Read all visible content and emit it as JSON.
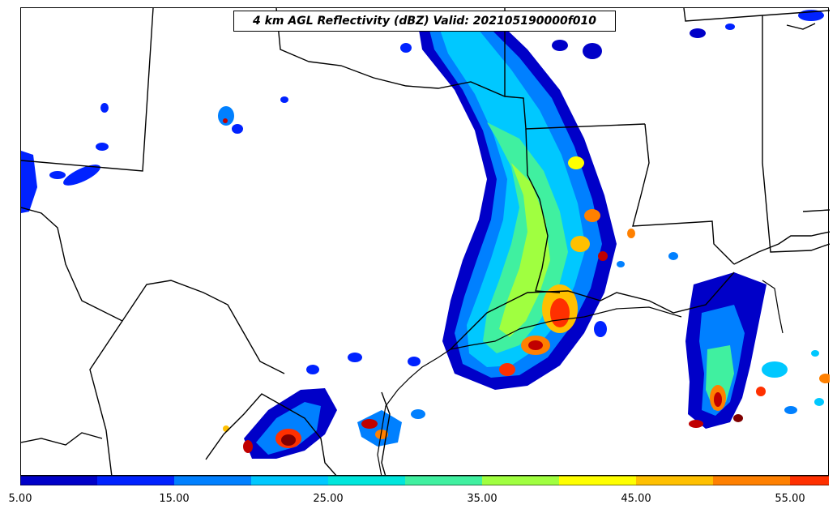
{
  "title": "4 km AGL Reflectivity (dBZ) Valid: 202105190000f010",
  "colorbar": {
    "tick_labels": [
      "5.00",
      "15.00",
      "25.00",
      "35.00",
      "45.00",
      "55.00"
    ],
    "colors": [
      "#0000c8",
      "#0022ff",
      "#0080ff",
      "#00c8ff",
      "#00e6dc",
      "#40f0a0",
      "#a0ff40",
      "#ffff00",
      "#ffc000",
      "#ff8000",
      "#ff3000",
      "#c00000",
      "#800000"
    ]
  }
}
